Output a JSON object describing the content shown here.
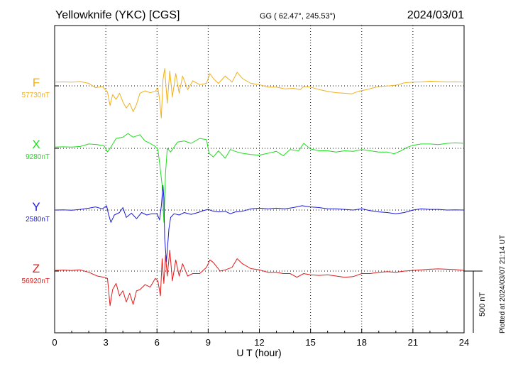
{
  "header": {
    "station": "Yellowknife (YKC)  [CGS]",
    "coords": "GG ( 62.47°, 245.53°)",
    "date": "2024/03/01"
  },
  "footer_note": "Plotted at 2024/03/07 21:14 UT",
  "chart_data": {
    "type": "line",
    "xlabel": "U T (hour)",
    "xlim": [
      0,
      24
    ],
    "xticks": [
      0,
      3,
      6,
      9,
      12,
      15,
      18,
      21,
      24
    ],
    "scale_bar": {
      "label": "500 nT",
      "value_nT": 500
    },
    "grid": true,
    "series": [
      {
        "name": "F",
        "baseline_label": "57730nT",
        "color": "#f0b020",
        "baseline_nT": 57730,
        "points": [
          [
            0,
            30
          ],
          [
            0.5,
            32
          ],
          [
            1,
            30
          ],
          [
            1.5,
            35
          ],
          [
            2,
            20
          ],
          [
            2.4,
            -15
          ],
          [
            2.8,
            -5
          ],
          [
            3.1,
            -50
          ],
          [
            3.25,
            -160
          ],
          [
            3.4,
            -70
          ],
          [
            3.6,
            -110
          ],
          [
            3.8,
            -60
          ],
          [
            4,
            -130
          ],
          [
            4.2,
            -180
          ],
          [
            4.4,
            -140
          ],
          [
            4.6,
            -210
          ],
          [
            4.8,
            -150
          ],
          [
            5,
            -60
          ],
          [
            5.3,
            -40
          ],
          [
            5.6,
            -55
          ],
          [
            5.9,
            -45
          ],
          [
            6.05,
            -20
          ],
          [
            6.15,
            -110
          ],
          [
            6.25,
            -260
          ],
          [
            6.35,
            50
          ],
          [
            6.45,
            140
          ],
          [
            6.6,
            -140
          ],
          [
            6.75,
            120
          ],
          [
            6.9,
            -90
          ],
          [
            7.1,
            100
          ],
          [
            7.3,
            -60
          ],
          [
            7.5,
            80
          ],
          [
            7.8,
            -30
          ],
          [
            8.1,
            40
          ],
          [
            8.5,
            10
          ],
          [
            8.9,
            20
          ],
          [
            9.1,
            100
          ],
          [
            9.3,
            60
          ],
          [
            9.6,
            20
          ],
          [
            10,
            80
          ],
          [
            10.4,
            30
          ],
          [
            10.7,
            110
          ],
          [
            11,
            60
          ],
          [
            11.5,
            20
          ],
          [
            12,
            10
          ],
          [
            12.5,
            -10
          ],
          [
            13,
            -10
          ],
          [
            13.5,
            -25
          ],
          [
            14,
            -20
          ],
          [
            14.4,
            -30
          ],
          [
            14.6,
            -5
          ],
          [
            15,
            -10
          ],
          [
            15.5,
            -30
          ],
          [
            16,
            -45
          ],
          [
            16.5,
            -55
          ],
          [
            17,
            -60
          ],
          [
            17.4,
            -65
          ],
          [
            17.8,
            -45
          ],
          [
            18.3,
            -30
          ],
          [
            19,
            -5
          ],
          [
            19.6,
            0
          ],
          [
            20,
            5
          ],
          [
            20.5,
            25
          ],
          [
            21,
            30
          ],
          [
            21.5,
            32
          ],
          [
            22,
            38
          ],
          [
            22.5,
            35
          ],
          [
            23,
            32
          ],
          [
            23.5,
            33
          ],
          [
            24,
            30
          ]
        ]
      },
      {
        "name": "X",
        "baseline_label": "9280nT",
        "color": "#20dd20",
        "baseline_nT": 9280,
        "points": [
          [
            0,
            10
          ],
          [
            0.5,
            12
          ],
          [
            1,
            10
          ],
          [
            1.5,
            15
          ],
          [
            2,
            35
          ],
          [
            2.5,
            30
          ],
          [
            2.9,
            20
          ],
          [
            3.1,
            -30
          ],
          [
            3.3,
            10
          ],
          [
            3.6,
            80
          ],
          [
            4,
            90
          ],
          [
            4.3,
            120
          ],
          [
            4.6,
            90
          ],
          [
            5,
            110
          ],
          [
            5.3,
            60
          ],
          [
            5.6,
            40
          ],
          [
            5.9,
            15
          ],
          [
            6.05,
            -10
          ],
          [
            6.15,
            -120
          ],
          [
            6.3,
            -300
          ],
          [
            6.4,
            -600
          ],
          [
            6.5,
            -200
          ],
          [
            6.6,
            0
          ],
          [
            6.8,
            -30
          ],
          [
            7.2,
            50
          ],
          [
            7.6,
            60
          ],
          [
            8,
            40
          ],
          [
            8.5,
            80
          ],
          [
            8.9,
            70
          ],
          [
            9.05,
            -40
          ],
          [
            9.3,
            -70
          ],
          [
            9.6,
            -20
          ],
          [
            10,
            -80
          ],
          [
            10.3,
            -10
          ],
          [
            10.7,
            -30
          ],
          [
            11,
            -40
          ],
          [
            11.5,
            -50
          ],
          [
            12,
            -55
          ],
          [
            12.5,
            -40
          ],
          [
            13,
            -25
          ],
          [
            13.4,
            -60
          ],
          [
            13.8,
            -10
          ],
          [
            14.3,
            -20
          ],
          [
            14.6,
            40
          ],
          [
            15,
            -5
          ],
          [
            15.5,
            -20
          ],
          [
            16,
            -20
          ],
          [
            16.5,
            -30
          ],
          [
            17,
            -20
          ],
          [
            17.5,
            -25
          ],
          [
            18,
            -10
          ],
          [
            18.5,
            -20
          ],
          [
            19,
            -30
          ],
          [
            19.5,
            -30
          ],
          [
            19.9,
            -45
          ],
          [
            20.3,
            -20
          ],
          [
            20.7,
            10
          ],
          [
            21,
            25
          ],
          [
            21.5,
            35
          ],
          [
            22,
            35
          ],
          [
            22.5,
            30
          ],
          [
            23,
            40
          ],
          [
            23.5,
            45
          ],
          [
            24,
            40
          ]
        ]
      },
      {
        "name": "Y",
        "baseline_label": "2580nT",
        "color": "#1a1adc",
        "baseline_nT": 2580,
        "points": [
          [
            0,
            0
          ],
          [
            0.5,
            2
          ],
          [
            1,
            -2
          ],
          [
            1.5,
            5
          ],
          [
            2,
            15
          ],
          [
            2.4,
            25
          ],
          [
            2.8,
            10
          ],
          [
            3.05,
            35
          ],
          [
            3.15,
            -30
          ],
          [
            3.3,
            -100
          ],
          [
            3.5,
            -40
          ],
          [
            3.8,
            -20
          ],
          [
            4,
            20
          ],
          [
            4.2,
            -60
          ],
          [
            4.5,
            -25
          ],
          [
            4.8,
            -70
          ],
          [
            5.1,
            -20
          ],
          [
            5.4,
            -40
          ],
          [
            5.7,
            -30
          ],
          [
            6,
            -30
          ],
          [
            6.15,
            -80
          ],
          [
            6.25,
            30
          ],
          [
            6.35,
            200
          ],
          [
            6.4,
            100
          ],
          [
            6.45,
            -230
          ],
          [
            6.55,
            -420
          ],
          [
            6.7,
            -150
          ],
          [
            6.8,
            -60
          ],
          [
            7,
            -30
          ],
          [
            7.3,
            -40
          ],
          [
            7.6,
            -20
          ],
          [
            8,
            -35
          ],
          [
            8.4,
            -20
          ],
          [
            8.7,
            -5
          ],
          [
            9,
            5
          ],
          [
            9.3,
            -10
          ],
          [
            9.6,
            -15
          ],
          [
            10,
            -10
          ],
          [
            10.3,
            -30
          ],
          [
            10.6,
            -15
          ],
          [
            11,
            -10
          ],
          [
            11.5,
            10
          ],
          [
            12,
            15
          ],
          [
            12.5,
            10
          ],
          [
            13,
            15
          ],
          [
            13.5,
            10
          ],
          [
            14,
            20
          ],
          [
            14.5,
            35
          ],
          [
            15,
            25
          ],
          [
            15.5,
            20
          ],
          [
            16,
            10
          ],
          [
            16.5,
            10
          ],
          [
            17,
            5
          ],
          [
            17.5,
            0
          ],
          [
            18,
            10
          ],
          [
            18.5,
            -5
          ],
          [
            19,
            -15
          ],
          [
            19.5,
            -20
          ],
          [
            20,
            -30
          ],
          [
            20.5,
            -20
          ],
          [
            21,
            0
          ],
          [
            21.5,
            10
          ],
          [
            22,
            5
          ],
          [
            22.5,
            5
          ],
          [
            23,
            0
          ],
          [
            23.5,
            2
          ],
          [
            24,
            0
          ]
        ]
      },
      {
        "name": "Z",
        "baseline_label": "56920nT",
        "color": "#e01b1b",
        "baseline_nT": 56920,
        "points": [
          [
            0,
            5
          ],
          [
            0.5,
            8
          ],
          [
            1,
            5
          ],
          [
            1.5,
            10
          ],
          [
            2,
            -10
          ],
          [
            2.5,
            -40
          ],
          [
            2.9,
            -50
          ],
          [
            3.1,
            -60
          ],
          [
            3.25,
            -280
          ],
          [
            3.4,
            -150
          ],
          [
            3.6,
            -100
          ],
          [
            3.8,
            -200
          ],
          [
            4,
            -160
          ],
          [
            4.2,
            -250
          ],
          [
            4.4,
            -180
          ],
          [
            4.6,
            -270
          ],
          [
            4.8,
            -160
          ],
          [
            5,
            -150
          ],
          [
            5.3,
            -110
          ],
          [
            5.6,
            -130
          ],
          [
            5.9,
            -60
          ],
          [
            6.05,
            -80
          ],
          [
            6.2,
            -200
          ],
          [
            6.3,
            100
          ],
          [
            6.4,
            -100
          ],
          [
            6.5,
            130
          ],
          [
            6.6,
            -40
          ],
          [
            6.75,
            170
          ],
          [
            6.9,
            -80
          ],
          [
            7.1,
            90
          ],
          [
            7.3,
            -40
          ],
          [
            7.5,
            60
          ],
          [
            7.8,
            -40
          ],
          [
            8.1,
            -20
          ],
          [
            8.5,
            -20
          ],
          [
            8.9,
            30
          ],
          [
            9.1,
            90
          ],
          [
            9.3,
            70
          ],
          [
            9.7,
            0
          ],
          [
            10,
            10
          ],
          [
            10.4,
            30
          ],
          [
            10.7,
            100
          ],
          [
            11,
            60
          ],
          [
            11.5,
            20
          ],
          [
            12,
            10
          ],
          [
            12.5,
            -10
          ],
          [
            13,
            -10
          ],
          [
            13.4,
            -20
          ],
          [
            13.8,
            -20
          ],
          [
            14.2,
            -50
          ],
          [
            14.6,
            -20
          ],
          [
            15,
            -30
          ],
          [
            15.5,
            -35
          ],
          [
            16,
            -30
          ],
          [
            16.5,
            -40
          ],
          [
            17,
            -50
          ],
          [
            17.5,
            -45
          ],
          [
            18,
            -20
          ],
          [
            18.5,
            -20
          ],
          [
            19,
            -10
          ],
          [
            19.5,
            -5
          ],
          [
            20,
            -10
          ],
          [
            20.5,
            0
          ],
          [
            21,
            5
          ],
          [
            21.5,
            10
          ],
          [
            22,
            15
          ],
          [
            22.5,
            18
          ],
          [
            23,
            15
          ],
          [
            23.5,
            12
          ],
          [
            24,
            5
          ]
        ]
      }
    ]
  }
}
